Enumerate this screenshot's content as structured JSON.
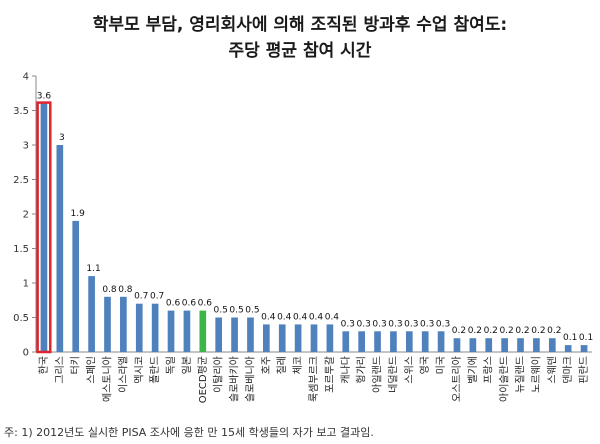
{
  "chart_data": {
    "type": "bar",
    "title": "학부모 부담, 영리회사에 의해 조직된 방과후 수업 참여도:",
    "subtitle": "주당 평균 참여 시간",
    "ylim": [
      0,
      4
    ],
    "yticks": [
      "0",
      "0.5",
      "1",
      "1.5",
      "2",
      "2.5",
      "3",
      "3.5",
      "4"
    ],
    "grid": false,
    "categories": [
      "한국",
      "그리스",
      "터키",
      "스페인",
      "에스토니아",
      "이스라엘",
      "멕시코",
      "폴란드",
      "독일",
      "일본",
      "OECD평균",
      "이탈리아",
      "슬로바키아",
      "슬로베니아",
      "호주",
      "칠레",
      "체코",
      "룩셈부르크",
      "포르투갈",
      "캐나다",
      "헝가리",
      "아일랜드",
      "네덜란드",
      "스위스",
      "영국",
      "미국",
      "오스트리아",
      "벨기에",
      "프랑스",
      "아이슬란드",
      "뉴질랜드",
      "노르웨이",
      "스웨덴",
      "덴마크",
      "핀란드"
    ],
    "values": [
      3.6,
      3,
      1.9,
      1.1,
      0.8,
      0.8,
      0.7,
      0.7,
      0.6,
      0.6,
      0.6,
      0.5,
      0.5,
      0.5,
      0.4,
      0.4,
      0.4,
      0.4,
      0.4,
      0.3,
      0.3,
      0.3,
      0.3,
      0.3,
      0.3,
      0.3,
      0.2,
      0.2,
      0.2,
      0.2,
      0.2,
      0.2,
      0.2,
      0.1,
      0.1
    ],
    "data_labels": [
      "3.6",
      "3",
      "1.9",
      "1.1",
      "0.8",
      "0.8",
      "0.7",
      "0.7",
      "0.6",
      "0.6",
      "0.6",
      "0.5",
      "0.5",
      "0.5",
      "0.4",
      "0.4",
      "0.4",
      "0.4",
      "0.4",
      "0.3",
      "0.3",
      "0.3",
      "0.3",
      "0.3",
      "0.3",
      "0.3",
      "0.2",
      "0.2",
      "0.2",
      "0.2",
      "0.2",
      "0.2",
      "0.2",
      "0.1",
      "0.1"
    ],
    "colors": {
      "default": "#4f81bd",
      "highlight_border": "#e0232d",
      "oecd": "#3cb54a"
    },
    "highlight_index": 0,
    "oecd_index": 10
  },
  "note": "주: 1) 2012년도 실시한 PISA 조사에 응한 만 15세 학생들의 자가 보고 결과임."
}
